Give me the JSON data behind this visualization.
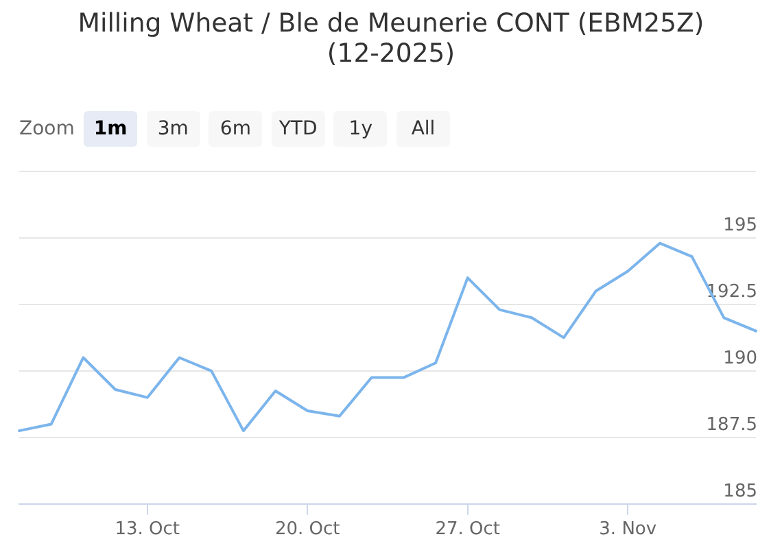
{
  "chart_data": {
    "type": "line",
    "title": "Milling Wheat / Ble de Meunerie CONT (EBM25Z) (12-2025)",
    "categories": [
      null,
      null,
      null,
      null,
      "13. Oct",
      null,
      null,
      null,
      null,
      "20. Oct",
      null,
      null,
      null,
      null,
      "27. Oct",
      null,
      null,
      null,
      null,
      "3. Nov",
      null,
      null,
      null,
      null
    ],
    "series": [
      {
        "color": "#7cb5ec",
        "values": [
          187.75,
          188.0,
          190.5,
          189.3,
          189.0,
          190.5,
          190.0,
          187.75,
          189.25,
          188.5,
          188.3,
          189.75,
          189.75,
          190.3,
          193.5,
          192.3,
          192.0,
          191.25,
          193.0,
          193.75,
          194.8,
          194.3,
          192.0,
          191.5
        ]
      }
    ],
    "ylim": [
      185,
      197.5
    ],
    "yticks": [
      185,
      187.5,
      190,
      192.5,
      195,
      {
        "value": 197.5,
        "label": null
      }
    ],
    "grid": "y",
    "legend": false,
    "annotations": [
      "Zoom",
      "1m",
      "3m",
      "6m",
      "YTD",
      "1y",
      "All"
    ]
  }
}
